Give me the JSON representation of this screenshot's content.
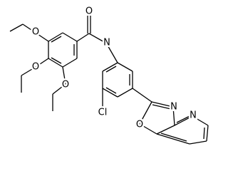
{
  "atoms": [
    {
      "label": "O"
    },
    {
      "label": "N"
    },
    {
      "label": "O"
    },
    {
      "label": "O"
    },
    {
      "label": "O"
    },
    {
      "label": "Cl"
    },
    {
      "label": "O"
    },
    {
      "label": "N"
    },
    {
      "label": "N"
    }
  ]
}
